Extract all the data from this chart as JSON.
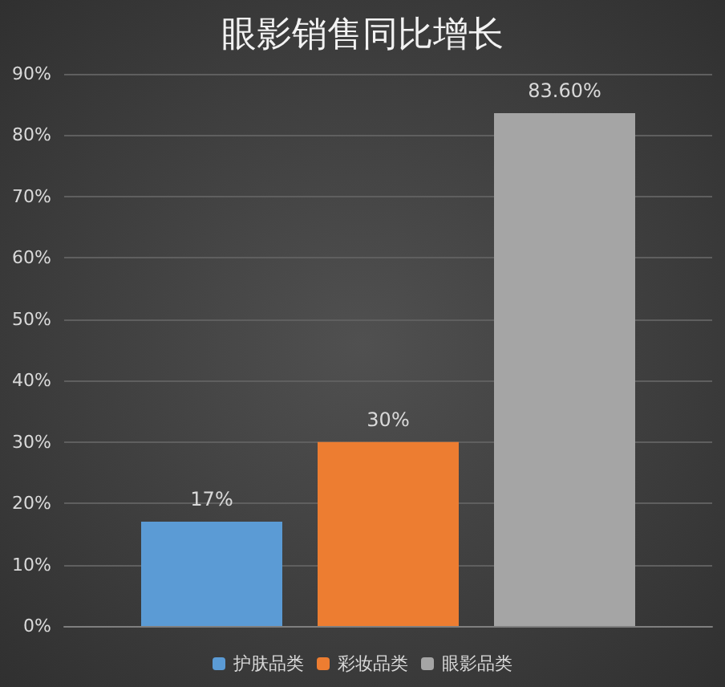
{
  "chart_data": {
    "type": "bar",
    "title": "眼影销售同比增长",
    "categories": [
      null
    ],
    "series": [
      {
        "name": "护肤品类",
        "color": "#5b9bd5",
        "values": [
          17
        ],
        "value_labels": [
          "17%"
        ]
      },
      {
        "name": "彩妆品类",
        "color": "#ed7d31",
        "values": [
          30
        ],
        "value_labels": [
          "30%"
        ]
      },
      {
        "name": "眼影品类",
        "color": "#a5a5a5",
        "values": [
          83.6
        ],
        "value_labels": [
          "83.60%"
        ]
      }
    ],
    "ylim": [
      0,
      90
    ],
    "yticks": [
      {
        "value": 0,
        "label": "0%"
      },
      {
        "value": 10,
        "label": "10%"
      },
      {
        "value": 20,
        "label": "20%"
      },
      {
        "value": 30,
        "label": "30%"
      },
      {
        "value": 40,
        "label": "40%"
      },
      {
        "value": 50,
        "label": "50%"
      },
      {
        "value": 60,
        "label": "60%"
      },
      {
        "value": 70,
        "label": "70%"
      },
      {
        "value": 80,
        "label": "80%"
      },
      {
        "value": 90,
        "label": "90%"
      }
    ],
    "grid": "y",
    "legend": "bottom"
  }
}
